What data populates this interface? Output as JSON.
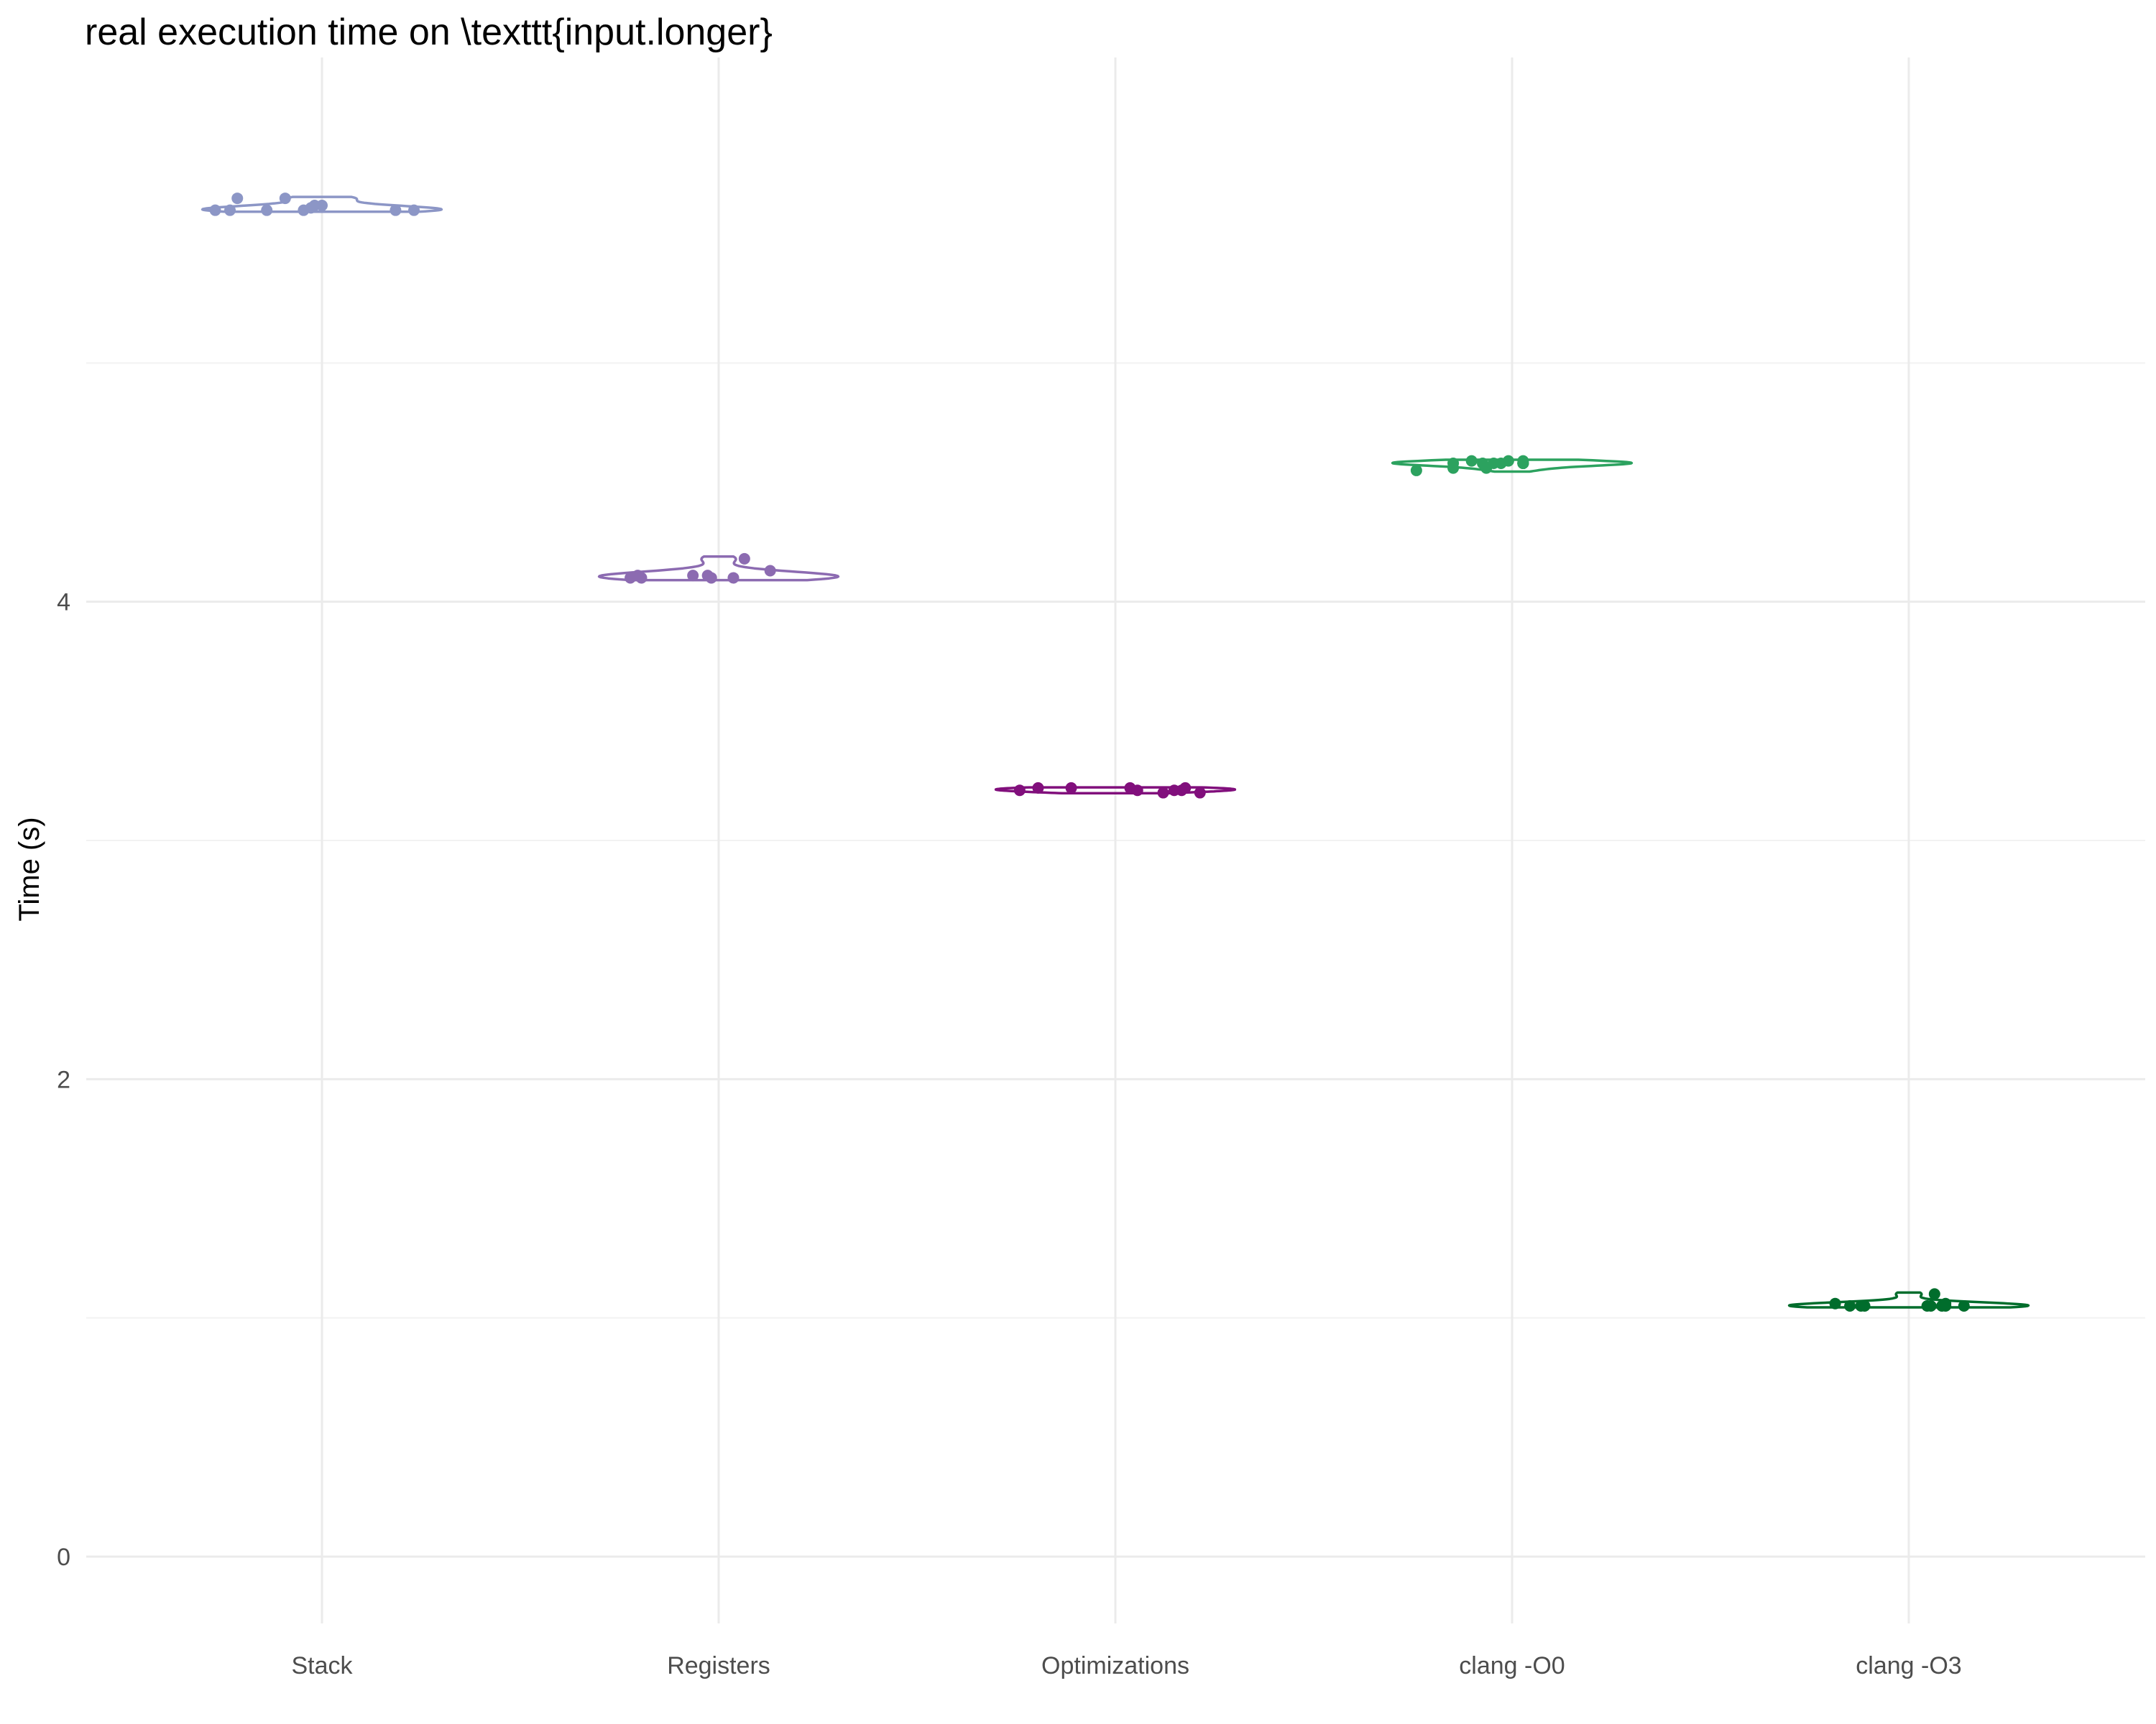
{
  "chart_data": {
    "type": "violin",
    "title": "real execution time on \\texttt{input.longer}",
    "xlabel": "",
    "ylabel": "Time (s)",
    "ylim": [
      -0.28,
      6.28
    ],
    "yticks": [
      0,
      2,
      4
    ],
    "grid": true,
    "legend": "none",
    "categories": [
      "Stack",
      "Registers",
      "Optimizations",
      "clang -O0",
      "clang -O3"
    ],
    "series": [
      {
        "category": "Stack",
        "color": "#8c96c6",
        "points": [
          {
            "x": -0.29,
            "y": 5.64
          },
          {
            "x": -0.25,
            "y": 5.64
          },
          {
            "x": -0.23,
            "y": 5.69
          },
          {
            "x": -0.15,
            "y": 5.64
          },
          {
            "x": -0.1,
            "y": 5.69
          },
          {
            "x": -0.05,
            "y": 5.64
          },
          {
            "x": -0.03,
            "y": 5.65
          },
          {
            "x": -0.02,
            "y": 5.66
          },
          {
            "x": 0.0,
            "y": 5.66
          },
          {
            "x": 0.2,
            "y": 5.64
          },
          {
            "x": 0.25,
            "y": 5.64
          }
        ]
      },
      {
        "category": "Registers",
        "color": "#8c6bb1",
        "points": [
          {
            "x": -0.24,
            "y": 4.1
          },
          {
            "x": -0.22,
            "y": 4.11
          },
          {
            "x": -0.21,
            "y": 4.1
          },
          {
            "x": -0.07,
            "y": 4.11
          },
          {
            "x": -0.03,
            "y": 4.11
          },
          {
            "x": -0.02,
            "y": 4.1
          },
          {
            "x": 0.04,
            "y": 4.1
          },
          {
            "x": 0.07,
            "y": 4.18
          },
          {
            "x": 0.14,
            "y": 4.13
          }
        ]
      },
      {
        "category": "Optimizations",
        "color": "#810f7c",
        "points": [
          {
            "x": -0.26,
            "y": 3.21
          },
          {
            "x": -0.21,
            "y": 3.22
          },
          {
            "x": -0.12,
            "y": 3.22
          },
          {
            "x": 0.04,
            "y": 3.22
          },
          {
            "x": 0.06,
            "y": 3.21
          },
          {
            "x": 0.13,
            "y": 3.2
          },
          {
            "x": 0.16,
            "y": 3.21
          },
          {
            "x": 0.18,
            "y": 3.21
          },
          {
            "x": 0.19,
            "y": 3.22
          },
          {
            "x": 0.23,
            "y": 3.2
          }
        ]
      },
      {
        "category": "clang -O0",
        "color": "#2ca25f",
        "points": [
          {
            "x": -0.26,
            "y": 4.55
          },
          {
            "x": -0.16,
            "y": 4.56
          },
          {
            "x": -0.16,
            "y": 4.58
          },
          {
            "x": -0.11,
            "y": 4.59
          },
          {
            "x": -0.08,
            "y": 4.58
          },
          {
            "x": -0.07,
            "y": 4.56
          },
          {
            "x": -0.05,
            "y": 4.58
          },
          {
            "x": -0.03,
            "y": 4.58
          },
          {
            "x": -0.01,
            "y": 4.59
          },
          {
            "x": 0.03,
            "y": 4.58
          },
          {
            "x": 0.03,
            "y": 4.59
          },
          {
            "x": 0.03,
            "y": 4.58
          },
          {
            "x": 0.03,
            "y": 4.58
          },
          {
            "x": 0.03,
            "y": 4.58
          },
          {
            "x": 0.03,
            "y": 4.58
          },
          {
            "x": 0.03,
            "y": 4.58
          }
        ]
      },
      {
        "category": "clang -O3",
        "color": "#006d2c",
        "points": [
          {
            "x": -0.2,
            "y": 1.06
          },
          {
            "x": -0.16,
            "y": 1.05
          },
          {
            "x": -0.13,
            "y": 1.05
          },
          {
            "x": -0.12,
            "y": 1.05
          },
          {
            "x": 0.05,
            "y": 1.05
          },
          {
            "x": 0.06,
            "y": 1.05
          },
          {
            "x": 0.07,
            "y": 1.1
          },
          {
            "x": 0.09,
            "y": 1.05
          },
          {
            "x": 0.1,
            "y": 1.05
          },
          {
            "x": 0.1,
            "y": 1.06
          },
          {
            "x": 0.15,
            "y": 1.05
          }
        ]
      }
    ]
  }
}
